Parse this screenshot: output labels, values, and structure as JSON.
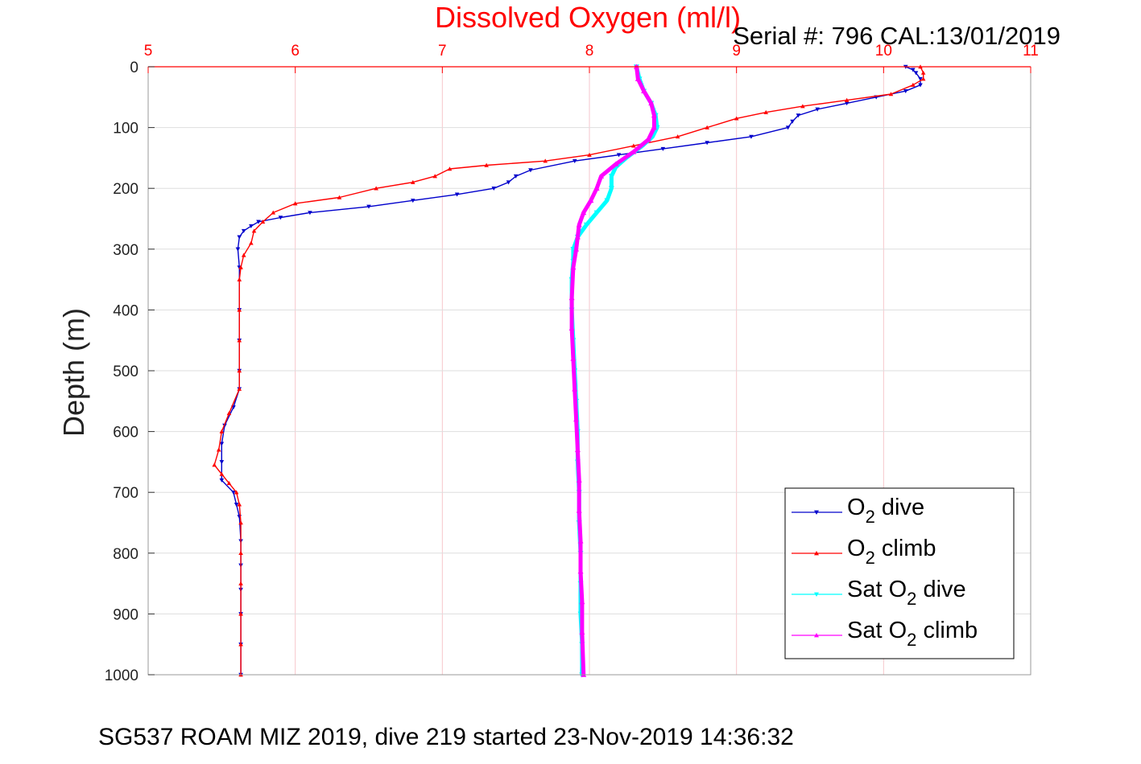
{
  "chart_data": {
    "type": "line",
    "title": "Dissolved Oxygen (ml/l)",
    "subtitle": "Serial #: 796  CAL:13/01/2019",
    "footer": "SG537 ROAM MIZ 2019, dive 219 started 23-Nov-2019 14:36:32",
    "xlabel": "",
    "ylabel": "Depth (m)",
    "xlim": [
      5,
      11
    ],
    "ylim": [
      0,
      1000
    ],
    "y_reversed": true,
    "x_axis_position": "top",
    "xticks": [
      "5",
      "6",
      "7",
      "8",
      "9",
      "10",
      "11"
    ],
    "yticks": [
      "0",
      "100",
      "200",
      "300",
      "400",
      "500",
      "600",
      "700",
      "800",
      "900",
      "1000"
    ],
    "grid": true,
    "legend_position": "bottom-right",
    "legend": [
      {
        "pre": "O",
        "sub": "2",
        "post": " dive"
      },
      {
        "pre": "O",
        "sub": "2",
        "post": " climb"
      },
      {
        "pre": "Sat O",
        "sub": "2",
        "post": " dive"
      },
      {
        "pre": "Sat O",
        "sub": "2",
        "post": " climb"
      }
    ],
    "series": [
      {
        "name": "O2 dive",
        "color": "#0000cc",
        "marker": "triangle-down",
        "points": [
          [
            10.15,
            0
          ],
          [
            10.2,
            5
          ],
          [
            10.22,
            10
          ],
          [
            10.25,
            20
          ],
          [
            10.25,
            30
          ],
          [
            10.15,
            40
          ],
          [
            9.95,
            50
          ],
          [
            9.75,
            60
          ],
          [
            9.55,
            70
          ],
          [
            9.42,
            80
          ],
          [
            9.38,
            90
          ],
          [
            9.35,
            100
          ],
          [
            9.1,
            115
          ],
          [
            8.8,
            125
          ],
          [
            8.5,
            135
          ],
          [
            8.2,
            145
          ],
          [
            7.9,
            155
          ],
          [
            7.6,
            170
          ],
          [
            7.5,
            180
          ],
          [
            7.45,
            190
          ],
          [
            7.35,
            200
          ],
          [
            7.1,
            210
          ],
          [
            6.8,
            220
          ],
          [
            6.5,
            230
          ],
          [
            6.1,
            240
          ],
          [
            5.9,
            248
          ],
          [
            5.75,
            255
          ],
          [
            5.7,
            262
          ],
          [
            5.65,
            270
          ],
          [
            5.62,
            280
          ],
          [
            5.61,
            300
          ],
          [
            5.62,
            330
          ],
          [
            5.62,
            400
          ],
          [
            5.62,
            450
          ],
          [
            5.62,
            500
          ],
          [
            5.62,
            530
          ],
          [
            5.58,
            560
          ],
          [
            5.52,
            590
          ],
          [
            5.5,
            620
          ],
          [
            5.5,
            650
          ],
          [
            5.5,
            680
          ],
          [
            5.58,
            700
          ],
          [
            5.6,
            720
          ],
          [
            5.62,
            740
          ],
          [
            5.63,
            780
          ],
          [
            5.63,
            820
          ],
          [
            5.63,
            860
          ],
          [
            5.63,
            900
          ],
          [
            5.63,
            950
          ],
          [
            5.63,
            1000
          ]
        ]
      },
      {
        "name": "O2 climb",
        "color": "#ff0000",
        "marker": "triangle-up",
        "points": [
          [
            10.25,
            0
          ],
          [
            10.27,
            10
          ],
          [
            10.27,
            20
          ],
          [
            10.2,
            30
          ],
          [
            10.05,
            45
          ],
          [
            9.75,
            55
          ],
          [
            9.45,
            65
          ],
          [
            9.2,
            75
          ],
          [
            9.0,
            85
          ],
          [
            8.8,
            100
          ],
          [
            8.6,
            115
          ],
          [
            8.3,
            130
          ],
          [
            8.0,
            145
          ],
          [
            7.7,
            155
          ],
          [
            7.3,
            162
          ],
          [
            7.05,
            168
          ],
          [
            6.95,
            180
          ],
          [
            6.8,
            190
          ],
          [
            6.55,
            200
          ],
          [
            6.3,
            215
          ],
          [
            6.0,
            225
          ],
          [
            5.85,
            240
          ],
          [
            5.78,
            255
          ],
          [
            5.72,
            270
          ],
          [
            5.7,
            290
          ],
          [
            5.65,
            310
          ],
          [
            5.63,
            330
          ],
          [
            5.62,
            350
          ],
          [
            5.62,
            400
          ],
          [
            5.62,
            450
          ],
          [
            5.62,
            500
          ],
          [
            5.62,
            530
          ],
          [
            5.55,
            570
          ],
          [
            5.5,
            600
          ],
          [
            5.48,
            630
          ],
          [
            5.45,
            655
          ],
          [
            5.5,
            670
          ],
          [
            5.55,
            685
          ],
          [
            5.6,
            700
          ],
          [
            5.62,
            720
          ],
          [
            5.63,
            750
          ],
          [
            5.63,
            800
          ],
          [
            5.63,
            850
          ],
          [
            5.63,
            900
          ],
          [
            5.63,
            950
          ],
          [
            5.63,
            1000
          ]
        ]
      },
      {
        "name": "Sat O2 dive",
        "color": "#00ffff",
        "marker": "triangle-down",
        "points": [
          [
            8.32,
            0
          ],
          [
            8.34,
            20
          ],
          [
            8.37,
            40
          ],
          [
            8.42,
            60
          ],
          [
            8.45,
            80
          ],
          [
            8.46,
            100
          ],
          [
            8.43,
            115
          ],
          [
            8.36,
            130
          ],
          [
            8.25,
            150
          ],
          [
            8.18,
            165
          ],
          [
            8.15,
            180
          ],
          [
            8.15,
            200
          ],
          [
            8.12,
            220
          ],
          [
            8.05,
            240
          ],
          [
            7.98,
            260
          ],
          [
            7.92,
            280
          ],
          [
            7.89,
            300
          ],
          [
            7.89,
            320
          ],
          [
            7.88,
            350
          ],
          [
            7.88,
            400
          ],
          [
            7.89,
            450
          ],
          [
            7.9,
            500
          ],
          [
            7.91,
            550
          ],
          [
            7.92,
            600
          ],
          [
            7.92,
            650
          ],
          [
            7.93,
            700
          ],
          [
            7.93,
            750
          ],
          [
            7.94,
            800
          ],
          [
            7.94,
            850
          ],
          [
            7.94,
            900
          ],
          [
            7.95,
            950
          ],
          [
            7.95,
            1000
          ]
        ]
      },
      {
        "name": "Sat O2 climb",
        "color": "#ff00ff",
        "marker": "triangle-up",
        "points": [
          [
            8.32,
            0
          ],
          [
            8.33,
            20
          ],
          [
            8.37,
            40
          ],
          [
            8.42,
            60
          ],
          [
            8.44,
            80
          ],
          [
            8.44,
            100
          ],
          [
            8.4,
            120
          ],
          [
            8.3,
            140
          ],
          [
            8.18,
            160
          ],
          [
            8.08,
            180
          ],
          [
            8.05,
            200
          ],
          [
            8.01,
            220
          ],
          [
            7.96,
            240
          ],
          [
            7.93,
            260
          ],
          [
            7.92,
            280
          ],
          [
            7.91,
            300
          ],
          [
            7.89,
            330
          ],
          [
            7.88,
            380
          ],
          [
            7.88,
            430
          ],
          [
            7.89,
            480
          ],
          [
            7.9,
            530
          ],
          [
            7.91,
            580
          ],
          [
            7.92,
            630
          ],
          [
            7.93,
            680
          ],
          [
            7.93,
            730
          ],
          [
            7.94,
            780
          ],
          [
            7.94,
            830
          ],
          [
            7.95,
            880
          ],
          [
            7.95,
            930
          ],
          [
            7.96,
            1000
          ]
        ]
      }
    ]
  }
}
